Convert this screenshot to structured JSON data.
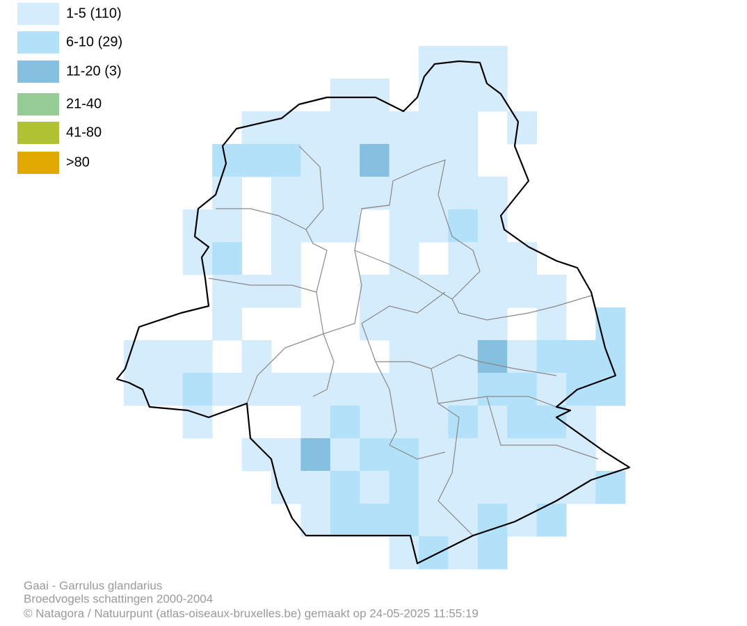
{
  "legend": [
    {
      "label": "1-5 (110)",
      "color": "#d4ecfb"
    },
    {
      "label": "6-10 (29)",
      "color": "#b3e1fa"
    },
    {
      "label": "11-20 (3)",
      "color": "#86c0e0"
    },
    {
      "label": "21-40",
      "color": "#95cc95"
    },
    {
      "label": "41-80",
      "color": "#b0c232"
    },
    {
      "label": ">80",
      "color": "#e0a800"
    }
  ],
  "footer": [
    "Gaai - Garrulus glandarius",
    "Broedvogels schattingen 2000-2004",
    "© Natagora / Natuurpunt (atlas-oiseaux-bruxelles.be) gemaakt op 24-05-2025 11:55:19"
  ]
}
